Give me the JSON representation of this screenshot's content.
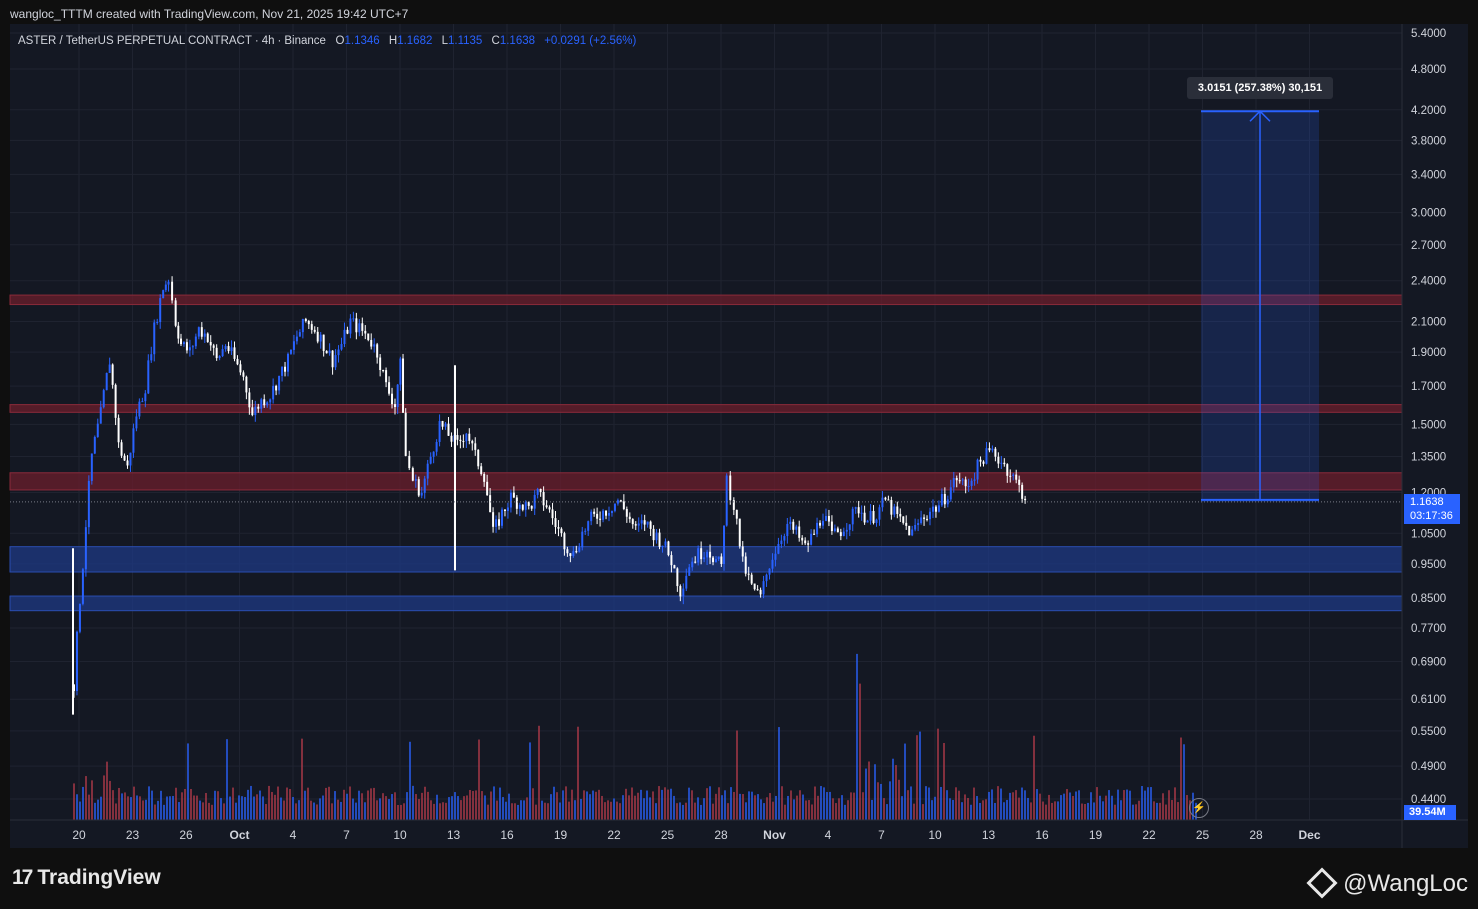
{
  "header": {
    "created_by": "wangloc_TTTM created with TradingView.com, Nov 21, 2025 19:42 UTC+7"
  },
  "legend": {
    "symbol": "ASTER / TetherUS PERPETUAL CONTRACT",
    "interval": "4h",
    "exchange": "Binance",
    "open_label": "O",
    "open": "1.1346",
    "high_label": "H",
    "high": "1.1682",
    "low_label": "L",
    "low": "1.1135",
    "close_label": "C",
    "close": "1.1638",
    "change": "+0.0291 (+2.56%)"
  },
  "price_tag": {
    "price": "1.1638",
    "countdown": "03:17:36"
  },
  "volume_tag": "39.54M",
  "measure_label": "3.0151 (257.38%) 30,151",
  "footer": {
    "brand": "TradingView",
    "author": "@WangLoc"
  },
  "colors": {
    "up": "#2962ff",
    "down": "#ffffff",
    "bg": "#141823",
    "resistance": "#7a2030",
    "support": "#1e3a8a"
  },
  "chart_data": {
    "type": "candlestick",
    "y_scale": "log",
    "y_ticks": [
      "5.4000",
      "4.8000",
      "4.2000",
      "3.8000",
      "3.4000",
      "3.0000",
      "2.7000",
      "2.4000",
      "2.1000",
      "1.9000",
      "1.7000",
      "1.5000",
      "1.3500",
      "1.2000",
      "1.0500",
      "0.9500",
      "0.8500",
      "0.7700",
      "0.6900",
      "0.6100",
      "0.5500",
      "0.4900",
      "0.4400"
    ],
    "x_ticks": [
      "20",
      "23",
      "26",
      "Oct",
      "4",
      "7",
      "10",
      "13",
      "16",
      "19",
      "22",
      "25",
      "28",
      "Nov",
      "4",
      "7",
      "10",
      "13",
      "16",
      "19",
      "22",
      "25",
      "28",
      "Dec"
    ],
    "resistance_zones": [
      [
        2.22,
        2.29
      ],
      [
        1.56,
        1.6
      ],
      [
        1.21,
        1.28
      ]
    ],
    "support_zones": [
      [
        0.925,
        1.005
      ],
      [
        0.815,
        0.855
      ]
    ],
    "last_price": 1.1638,
    "target_price": 4.18,
    "measure_change": "3.0151 (257.38%)",
    "price_path": [
      [
        0,
        0.64
      ],
      [
        0.5,
        0.95
      ],
      [
        1,
        1.35
      ],
      [
        1.5,
        1.55
      ],
      [
        2,
        1.85
      ],
      [
        2.5,
        1.4
      ],
      [
        3,
        1.3
      ],
      [
        3.5,
        1.55
      ],
      [
        4,
        1.7
      ],
      [
        4.5,
        2.05
      ],
      [
        5,
        2.35
      ],
      [
        5.3,
        2.42
      ],
      [
        5.7,
        2.1
      ],
      [
        6,
        1.95
      ],
      [
        6.5,
        1.9
      ],
      [
        7,
        2.05
      ],
      [
        7.5,
        2.0
      ],
      [
        8,
        1.85
      ],
      [
        8.5,
        1.95
      ],
      [
        9,
        1.85
      ],
      [
        9.5,
        1.75
      ],
      [
        10,
        1.55
      ],
      [
        10.5,
        1.62
      ],
      [
        11,
        1.65
      ],
      [
        11.5,
        1.75
      ],
      [
        12,
        1.85
      ],
      [
        12.5,
        2.0
      ],
      [
        13,
        2.1
      ],
      [
        13.5,
        2.05
      ],
      [
        14,
        1.95
      ],
      [
        14.5,
        1.85
      ],
      [
        15,
        1.95
      ],
      [
        15.5,
        2.1
      ],
      [
        16,
        2.05
      ],
      [
        16.5,
        2.0
      ],
      [
        17,
        1.9
      ],
      [
        17.5,
        1.7
      ],
      [
        18,
        1.6
      ],
      [
        18.3,
        1.82
      ],
      [
        18.6,
        1.35
      ],
      [
        19,
        1.25
      ],
      [
        19.5,
        1.2
      ],
      [
        20,
        1.35
      ],
      [
        20.5,
        1.5
      ],
      [
        21,
        1.45
      ],
      [
        21.5,
        1.4
      ],
      [
        22,
        1.47
      ],
      [
        22.5,
        1.35
      ],
      [
        23,
        1.27
      ],
      [
        23.5,
        1.05
      ],
      [
        24,
        1.12
      ],
      [
        24.5,
        1.18
      ],
      [
        25,
        1.16
      ],
      [
        25.5,
        1.14
      ],
      [
        26,
        1.19
      ],
      [
        26.5,
        1.15
      ],
      [
        27,
        1.08
      ],
      [
        27.5,
        1.02
      ],
      [
        28,
        0.98
      ],
      [
        28.5,
        1.05
      ],
      [
        29,
        1.1
      ],
      [
        29.5,
        1.12
      ],
      [
        30,
        1.14
      ],
      [
        30.5,
        1.17
      ],
      [
        31,
        1.12
      ],
      [
        31.5,
        1.06
      ],
      [
        32,
        1.09
      ],
      [
        32.5,
        1.05
      ],
      [
        33,
        1.02
      ],
      [
        33.5,
        0.96
      ],
      [
        34,
        0.87
      ],
      [
        34.5,
        0.95
      ],
      [
        35,
        0.98
      ],
      [
        35.5,
        1.0
      ],
      [
        36,
        0.96
      ],
      [
        36.3,
        0.94
      ],
      [
        36.6,
        1.25
      ],
      [
        37,
        1.15
      ],
      [
        37.5,
        0.95
      ],
      [
        38,
        0.88
      ],
      [
        38.5,
        0.85
      ],
      [
        39,
        0.95
      ],
      [
        39.5,
        1.02
      ],
      [
        40,
        1.08
      ],
      [
        40.5,
        1.05
      ],
      [
        41,
        1.0
      ],
      [
        41.5,
        1.05
      ],
      [
        42,
        1.12
      ],
      [
        42.5,
        1.04
      ],
      [
        43,
        1.06
      ],
      [
        43.5,
        1.1
      ],
      [
        44,
        1.14
      ],
      [
        44.5,
        1.1
      ],
      [
        45,
        1.12
      ],
      [
        45.5,
        1.17
      ],
      [
        46,
        1.12
      ],
      [
        46.5,
        1.08
      ],
      [
        47,
        1.05
      ],
      [
        47.5,
        1.1
      ],
      [
        48,
        1.13
      ],
      [
        48.5,
        1.15
      ],
      [
        49,
        1.2
      ],
      [
        49.5,
        1.26
      ],
      [
        50,
        1.22
      ],
      [
        50.5,
        1.28
      ],
      [
        51,
        1.35
      ],
      [
        51.5,
        1.37
      ],
      [
        52,
        1.33
      ],
      [
        52.5,
        1.28
      ],
      [
        53,
        1.22
      ],
      [
        53.5,
        1.1638
      ]
    ]
  }
}
